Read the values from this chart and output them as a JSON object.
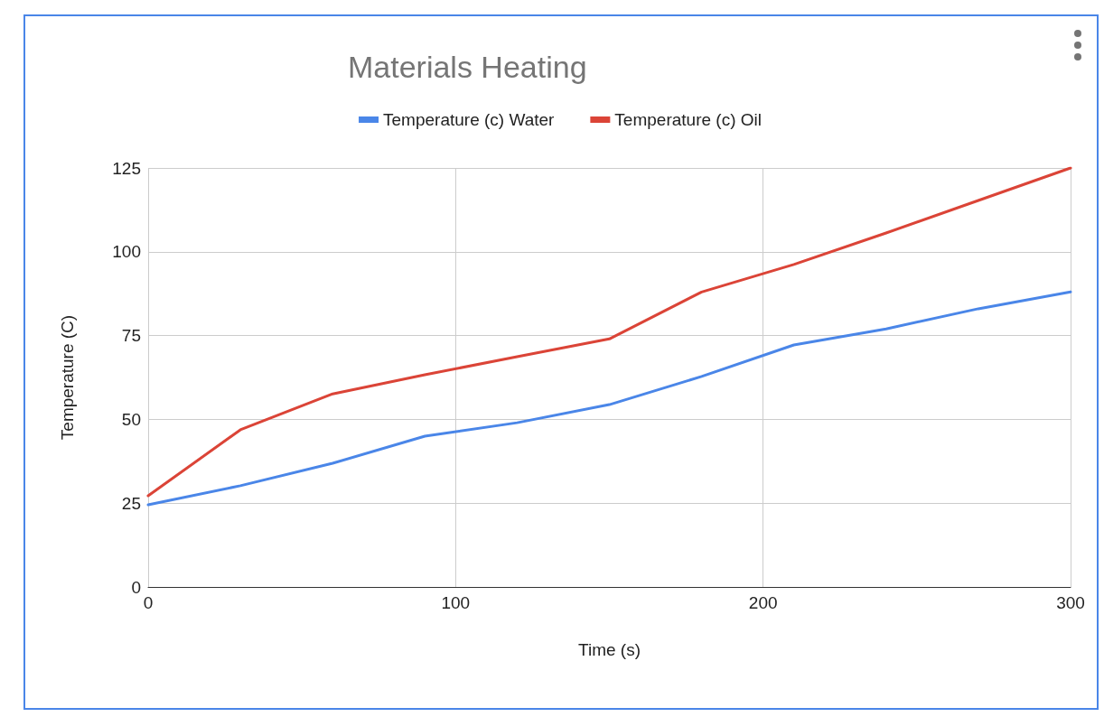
{
  "chart_data": {
    "type": "line",
    "title": "Materials Heating",
    "xlabel": "Time (s)",
    "ylabel": "Temperature (C)",
    "x": [
      0,
      30,
      60,
      90,
      120,
      150,
      180,
      210,
      240,
      270,
      300
    ],
    "series": [
      {
        "name": "Temperature (c) Water",
        "color": "#4a86e8",
        "values": [
          24.5,
          30.2,
          36.9,
          45,
          49,
          54.4,
          62.8,
          72.2,
          77,
          83,
          88
        ]
      },
      {
        "name": "Temperature (c) Oil",
        "color": "#db4437",
        "values": [
          27.2,
          46.9,
          57.6,
          63.3,
          68.7,
          74,
          88,
          96.2,
          105.6,
          115.3,
          125
        ]
      }
    ],
    "xlim": [
      0,
      300
    ],
    "xticks": [
      0,
      100,
      200,
      300
    ],
    "ylim": [
      0,
      125
    ],
    "yticks": [
      0,
      25,
      50,
      75,
      100,
      125
    ],
    "grid": true,
    "legend": "top",
    "marker": "none",
    "line_style": "solid"
  }
}
